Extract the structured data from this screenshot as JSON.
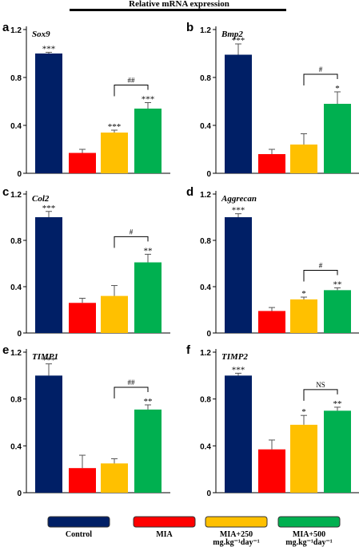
{
  "header": {
    "title": "Relative mRNA  expression"
  },
  "legend": {
    "items": [
      {
        "name": "Control",
        "lines": [
          "Control"
        ],
        "color": "#001f66"
      },
      {
        "name": "MIA",
        "lines": [
          "MIA"
        ],
        "color": "#ff0000"
      },
      {
        "name": "MIA+250",
        "lines": [
          "MIA+250",
          "mg.kg⁻¹day⁻¹"
        ],
        "color": "#ffc000"
      },
      {
        "name": "MIA+500",
        "lines": [
          "MIA+500",
          "mg.kg⁻¹day⁻¹"
        ],
        "color": "#00b050"
      }
    ]
  },
  "chart_data": [
    {
      "type": "bar",
      "panel": "a",
      "title": "Sox9",
      "categories": [
        "Control",
        "MIA",
        "MIA+250",
        "MIA+500"
      ],
      "values": [
        1.0,
        0.17,
        0.34,
        0.54
      ],
      "errors": [
        0.01,
        0.03,
        0.02,
        0.05
      ],
      "stars": [
        "***",
        "",
        "***",
        "***"
      ],
      "ylim": [
        0,
        1.2
      ],
      "yticks": [
        "0",
        "0.4",
        "0.8",
        "1.2"
      ],
      "bracket": {
        "label": "##"
      }
    },
    {
      "type": "bar",
      "panel": "b",
      "title": "Bmp2",
      "categories": [
        "Control",
        "MIA",
        "MIA+250",
        "MIA+500"
      ],
      "values": [
        0.99,
        0.16,
        0.24,
        0.58
      ],
      "errors": [
        0.09,
        0.04,
        0.09,
        0.1
      ],
      "stars": [
        "***",
        "",
        "",
        "*"
      ],
      "ylim": [
        0,
        1.2
      ],
      "yticks": [
        "0",
        "0.4",
        "0.8",
        "1.2"
      ],
      "bracket": {
        "label": "#"
      }
    },
    {
      "type": "bar",
      "panel": "c",
      "title": "Col2",
      "categories": [
        "Control",
        "MIA",
        "MIA+250",
        "MIA+500"
      ],
      "values": [
        1.0,
        0.26,
        0.32,
        0.61
      ],
      "errors": [
        0.05,
        0.04,
        0.09,
        0.07
      ],
      "stars": [
        "***",
        "",
        "",
        "**"
      ],
      "ylim": [
        0,
        1.2
      ],
      "yticks": [
        "0",
        "0.4",
        "0.8",
        "1.2"
      ],
      "bracket": {
        "label": "#"
      }
    },
    {
      "type": "bar",
      "panel": "d",
      "title": "Aggrecan",
      "categories": [
        "Control",
        "MIA",
        "MIA+250",
        "MIA+500"
      ],
      "values": [
        1.0,
        0.19,
        0.29,
        0.37
      ],
      "errors": [
        0.03,
        0.03,
        0.02,
        0.02
      ],
      "stars": [
        "***",
        "",
        "*",
        "**"
      ],
      "ylim": [
        0,
        1.2
      ],
      "yticks": [
        "0",
        "0.4",
        "0.8",
        "1.2"
      ],
      "bracket": {
        "label": "#"
      }
    },
    {
      "type": "bar",
      "panel": "e",
      "title": "TIMP1",
      "categories": [
        "Control",
        "MIA",
        "MIA+250",
        "MIA+500"
      ],
      "values": [
        1.0,
        0.21,
        0.25,
        0.71
      ],
      "errors": [
        0.1,
        0.11,
        0.04,
        0.04
      ],
      "stars": [
        "***",
        "",
        "",
        "**"
      ],
      "ylim": [
        0,
        1.2
      ],
      "yticks": [
        "0",
        "0.4",
        "0.8",
        "1.2"
      ],
      "bracket": {
        "label": "##"
      }
    },
    {
      "type": "bar",
      "panel": "f",
      "title": "TIMP2",
      "categories": [
        "Control",
        "MIA",
        "MIA+250",
        "MIA+500"
      ],
      "values": [
        1.0,
        0.37,
        0.58,
        0.7
      ],
      "errors": [
        0.02,
        0.08,
        0.08,
        0.03
      ],
      "stars": [
        "***",
        "",
        "*",
        "**"
      ],
      "ylim": [
        0,
        1.2
      ],
      "yticks": [
        "0",
        "0.4",
        "0.8",
        "1.2"
      ],
      "bracket": {
        "label": "NS"
      }
    }
  ]
}
